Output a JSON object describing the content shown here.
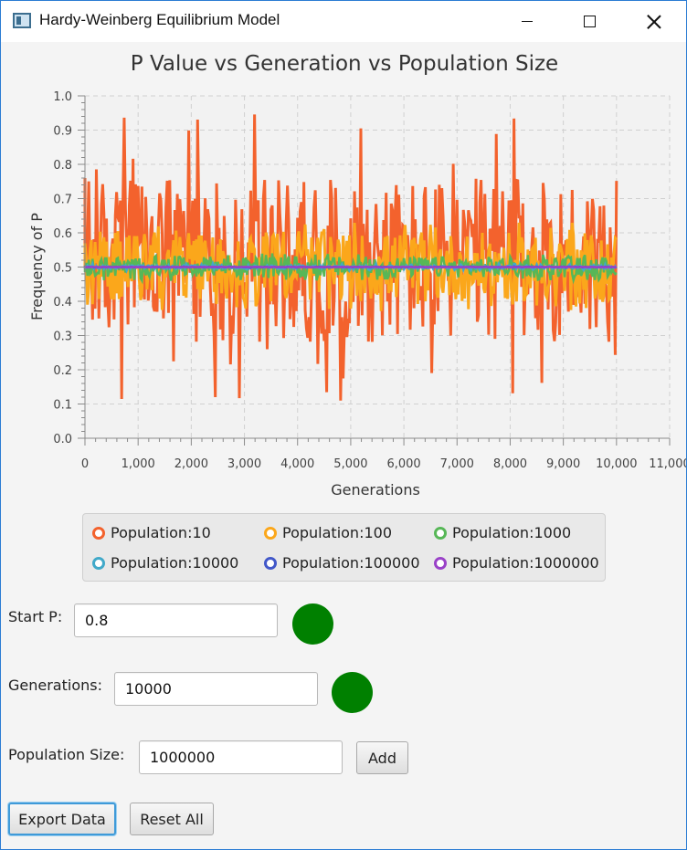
{
  "window": {
    "title": "Hardy-Weinberg Equilibrium Model",
    "icon": "app-window-icon",
    "controls": [
      "minimize-icon",
      "maximize-icon",
      "close-icon"
    ]
  },
  "chart_data": {
    "type": "line",
    "title": "P Value vs Generation vs Population Size",
    "xlabel": "Generations",
    "ylabel": "Frequency of P",
    "xlim": [
      0,
      11000
    ],
    "ylim": [
      0.0,
      1.0
    ],
    "x_ticks": [
      "0",
      "1,000",
      "2,000",
      "3,000",
      "4,000",
      "5,000",
      "6,000",
      "7,000",
      "8,000",
      "9,000",
      "10,000",
      "11,000"
    ],
    "y_ticks": [
      "0.0",
      "0.1",
      "0.2",
      "0.3",
      "0.4",
      "0.5",
      "0.6",
      "0.7",
      "0.8",
      "0.9",
      "1.0"
    ],
    "grid": true,
    "legend_placement": "bottom",
    "series": [
      {
        "name": "Population:10",
        "color": "#f3622d",
        "x_range": [
          0,
          10000
        ],
        "center": 0.5,
        "typical_band": [
          0.28,
          0.76
        ],
        "extremes": [
          0.1,
          0.95
        ]
      },
      {
        "name": "Population:100",
        "color": "#fba71b",
        "x_range": [
          0,
          10000
        ],
        "center": 0.5,
        "typical_band": [
          0.4,
          0.6
        ],
        "extremes": [
          0.37,
          0.63
        ]
      },
      {
        "name": "Population:1000",
        "color": "#57b757",
        "x_range": [
          0,
          10000
        ],
        "center": 0.5,
        "typical_band": [
          0.47,
          0.53
        ],
        "extremes": [
          0.46,
          0.54
        ]
      },
      {
        "name": "Population:10000",
        "color": "#41a9c9",
        "x_range": [
          0,
          10000
        ],
        "center": 0.5,
        "typical_band": [
          0.495,
          0.505
        ],
        "extremes": [
          0.49,
          0.51
        ]
      },
      {
        "name": "Population:100000",
        "color": "#4258c9",
        "x_range": [
          0,
          10000
        ],
        "center": 0.5,
        "typical_band": [
          0.499,
          0.501
        ],
        "extremes": [
          0.498,
          0.502
        ]
      },
      {
        "name": "Population:1000000",
        "color": "#9a42c8",
        "x_range": [
          0,
          10000
        ],
        "center": 0.5,
        "typical_band": [
          0.4995,
          0.5005
        ],
        "extremes": [
          0.499,
          0.501
        ]
      }
    ]
  },
  "form": {
    "start_p": {
      "label": "Start P:",
      "value": "0.8",
      "status_color": "#008000"
    },
    "generations": {
      "label": "Generations:",
      "value": "10000",
      "status_color": "#008000"
    },
    "population_size": {
      "label": "Population Size:",
      "value": "1000000",
      "add_label": "Add"
    }
  },
  "actions": {
    "export_label": "Export Data",
    "reset_label": "Reset All"
  }
}
